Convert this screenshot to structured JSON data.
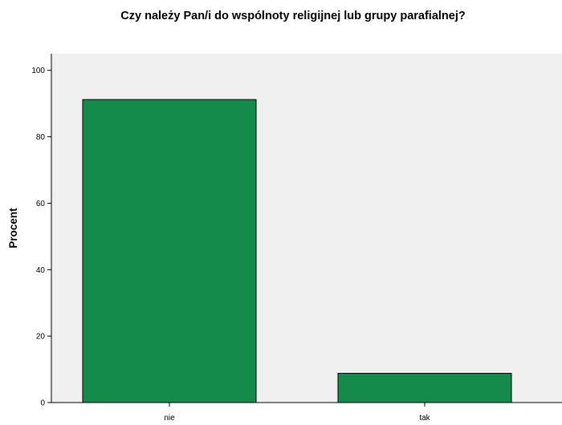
{
  "chart_data": {
    "type": "bar",
    "title": "Czy należy Pan/i do wspólnoty religijnej lub grupy parafialnej?",
    "xlabel": "",
    "ylabel": "Procent",
    "categories": [
      "nie",
      "tak"
    ],
    "values": [
      91.2,
      8.8
    ],
    "ylim": [
      0,
      105
    ],
    "yticks": [
      0,
      20,
      40,
      60,
      80,
      100
    ],
    "grid": false,
    "colors": {
      "bar_fill": "#148b4b",
      "bar_stroke": "#000000",
      "plot_background": "#f0f0f0",
      "axis": "#000000"
    }
  }
}
